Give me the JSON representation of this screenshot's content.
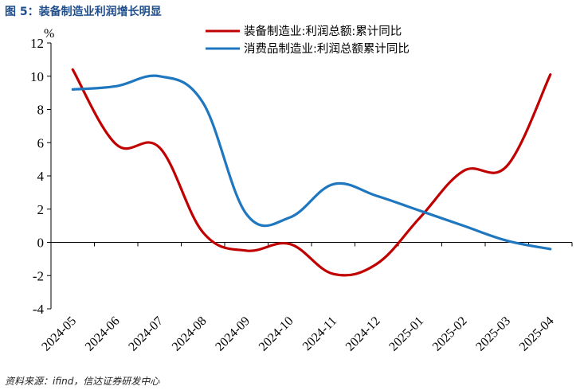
{
  "figure_title": "图 5：装备制造业利润增长明显",
  "source_note": "资料来源：ifind，信达证券研发中心",
  "chart_data": {
    "type": "line",
    "unit": "%",
    "categories": [
      "2024-05",
      "2024-06",
      "2024-07",
      "2024-08",
      "2024-09",
      "2024-10",
      "2024-11",
      "2024-12",
      "2025-01",
      "2025-02",
      "2025-03",
      "2025-04"
    ],
    "ylim": [
      -4,
      12
    ],
    "yticks": [
      -4,
      -2,
      0,
      2,
      4,
      6,
      8,
      10,
      12
    ],
    "legend_position": "top-right",
    "grid": false,
    "series": [
      {
        "name": "装备制造业:利润总额:累计同比",
        "color": "#c00000",
        "values": [
          10.4,
          5.9,
          5.7,
          0.6,
          -0.5,
          -0.1,
          -1.9,
          -1.3,
          1.5,
          4.3,
          4.6,
          10.1
        ]
      },
      {
        "name": "消费品制造业:利润总额累计同比",
        "color": "#1f77c0",
        "values": [
          9.2,
          9.4,
          10.0,
          8.4,
          1.7,
          1.5,
          3.5,
          2.8,
          1.9,
          1.0,
          0.1,
          -0.4
        ]
      }
    ]
  }
}
